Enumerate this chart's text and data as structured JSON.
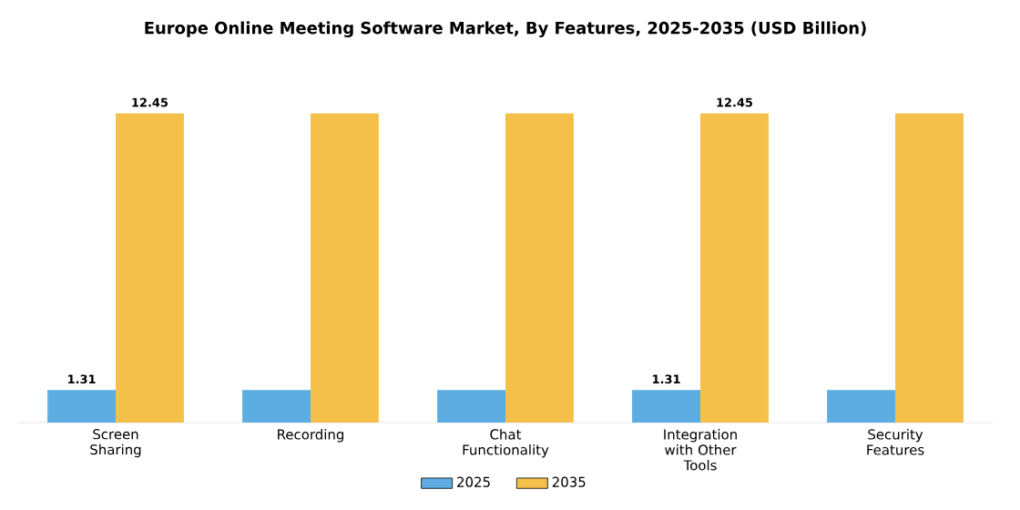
{
  "chart_data": {
    "type": "bar",
    "title": "Europe Online Meeting Software Market, By Features, 2025-2035 (USD Billion)",
    "categories": [
      "Screen Sharing",
      "Recording",
      "Chat Functionality",
      "Integration with Other Tools",
      "Security Features"
    ],
    "series": [
      {
        "name": "2025",
        "color": "#5dade2",
        "values": [
          1.31,
          1.31,
          1.31,
          1.31,
          1.31
        ],
        "value_labels": [
          "1.31",
          null,
          null,
          "1.31",
          null
        ]
      },
      {
        "name": "2035",
        "color": "#f5c04a",
        "values": [
          12.45,
          12.45,
          12.45,
          12.45,
          12.45
        ],
        "value_labels": [
          "12.45",
          null,
          null,
          "12.45",
          null
        ]
      }
    ],
    "legend": "bottom"
  }
}
